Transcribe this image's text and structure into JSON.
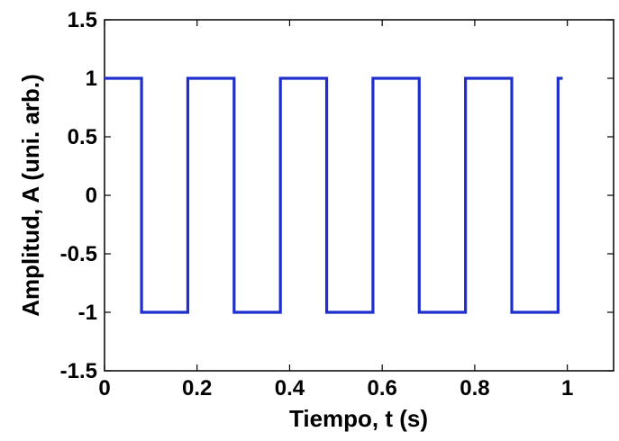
{
  "chart_data": {
    "type": "line",
    "title": "",
    "xlabel": "Tiempo, t (s)",
    "ylabel": "Amplitud, A (uni. arb.)",
    "xlim": [
      0,
      1.1
    ],
    "ylim": [
      -1.5,
      1.5
    ],
    "xticks": [
      "0",
      "0.2",
      "0.4",
      "0.6",
      "0.8",
      "1"
    ],
    "yticks": [
      "-1.5",
      "-1",
      "-0.5",
      "0",
      "0.5",
      "1",
      "1.5"
    ],
    "grid": false,
    "line_color": "#1f2fcc",
    "series": [
      {
        "x": [
          0,
          0.08,
          0.08,
          0.18,
          0.18,
          0.28,
          0.28,
          0.38,
          0.38,
          0.48,
          0.48,
          0.58,
          0.58,
          0.68,
          0.68,
          0.78,
          0.78,
          0.88,
          0.88,
          0.98,
          0.98,
          0.99
        ],
        "y": [
          1,
          1,
          -1,
          -1,
          1,
          1,
          -1,
          -1,
          1,
          1,
          -1,
          -1,
          1,
          1,
          -1,
          -1,
          1,
          1,
          -1,
          -1,
          1,
          1
        ]
      }
    ]
  }
}
